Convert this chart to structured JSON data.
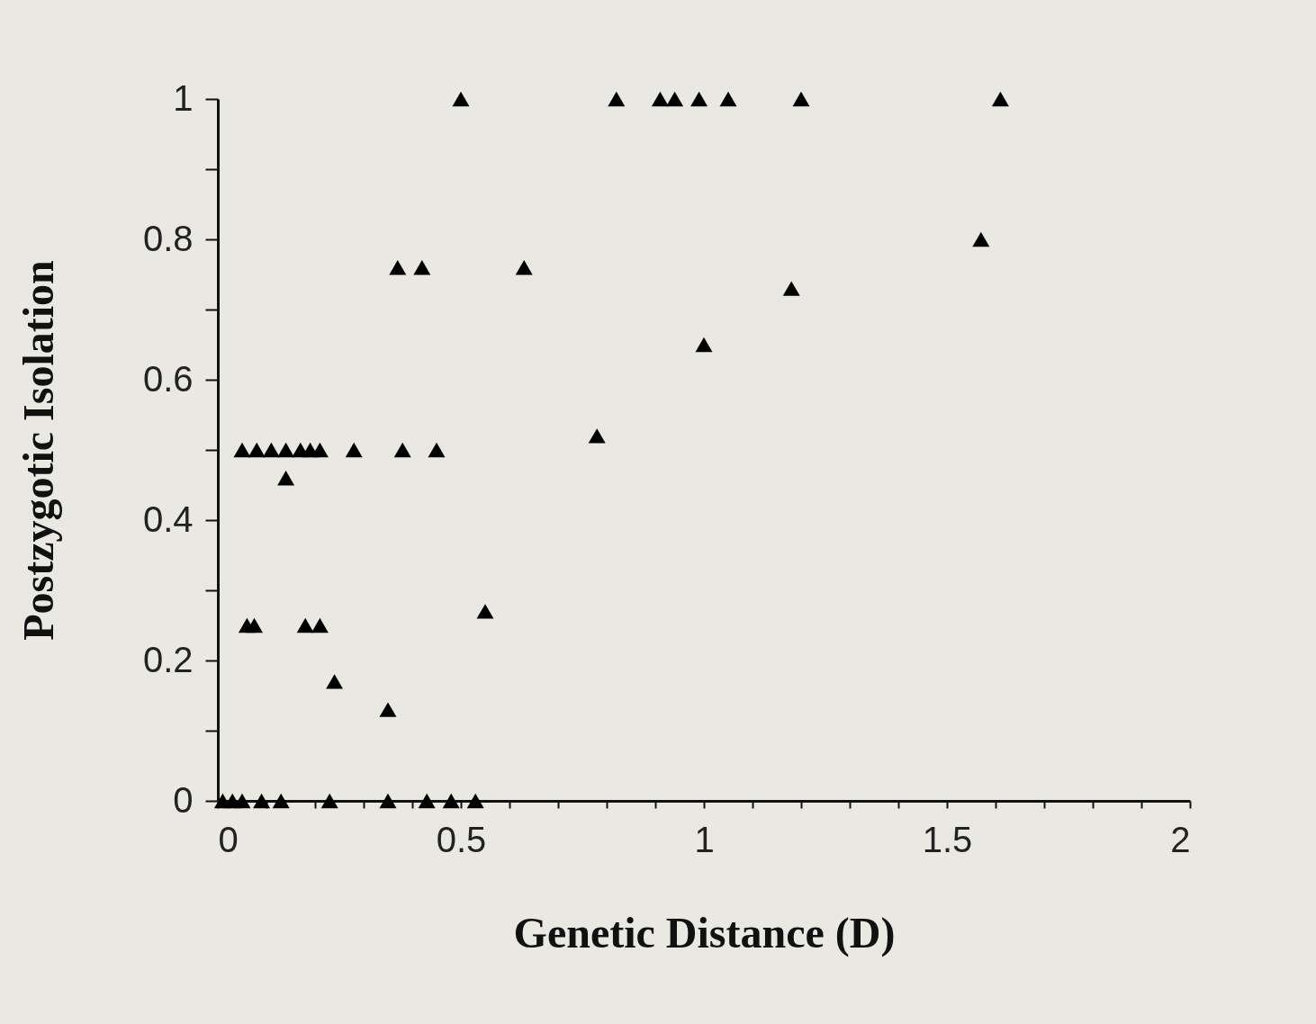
{
  "chart_data": {
    "type": "scatter",
    "xlabel": "Genetic Distance (D)",
    "ylabel": "Postzygotic Isolation",
    "marker": "triangle",
    "grid": false,
    "xlim": [
      0,
      2
    ],
    "ylim": [
      0,
      1
    ],
    "xticks": [
      0,
      {
        "value": 0.1,
        "label": null
      },
      {
        "value": 0.2,
        "label": null
      },
      {
        "value": 0.3,
        "label": null
      },
      {
        "value": 0.4,
        "label": null
      },
      0.5,
      {
        "value": 0.6,
        "label": null
      },
      {
        "value": 0.7,
        "label": null
      },
      {
        "value": 0.8,
        "label": null
      },
      {
        "value": 0.9,
        "label": null
      },
      1,
      {
        "value": 1.1,
        "label": null
      },
      {
        "value": 1.2,
        "label": null
      },
      {
        "value": 1.3,
        "label": null
      },
      {
        "value": 1.4,
        "label": null
      },
      1.5,
      {
        "value": 1.6,
        "label": null
      },
      {
        "value": 1.7,
        "label": null
      },
      {
        "value": 1.8,
        "label": null
      },
      {
        "value": 1.9,
        "label": null
      },
      2
    ],
    "yticks": [
      0,
      {
        "value": 0.1,
        "label": null
      },
      0.2,
      {
        "value": 0.3,
        "label": null
      },
      0.4,
      {
        "value": 0.5,
        "label": null
      },
      0.6,
      {
        "value": 0.7,
        "label": null
      },
      0.8,
      {
        "value": 0.9,
        "label": null
      },
      1
    ],
    "series": [
      {
        "color": "#000000",
        "x": [
          0.5,
          0.82,
          0.91,
          0.94,
          0.99,
          1.05,
          1.2,
          1.61,
          1.57,
          0.37,
          0.42,
          0.63,
          1.18,
          1.0,
          0.05,
          0.08,
          0.11,
          0.14,
          0.17,
          0.19,
          0.21,
          0.28,
          0.38,
          0.45,
          0.78,
          0.14,
          0.06,
          0.075,
          0.18,
          0.21,
          0.55,
          0.24,
          0.35,
          0.01,
          0.03,
          0.05,
          0.09,
          0.13,
          0.23,
          0.35,
          0.43,
          0.48,
          0.53
        ],
        "values": [
          1,
          1,
          1,
          1,
          1,
          1,
          1,
          1,
          0.8,
          0.76,
          0.76,
          0.76,
          0.73,
          0.65,
          0.5,
          0.5,
          0.5,
          0.5,
          0.5,
          0.5,
          0.5,
          0.5,
          0.5,
          0.5,
          0.52,
          0.46,
          0.25,
          0.25,
          0.25,
          0.25,
          0.27,
          0.17,
          0.13,
          0,
          0,
          0,
          0,
          0,
          0,
          0,
          0,
          0,
          0
        ]
      }
    ]
  }
}
